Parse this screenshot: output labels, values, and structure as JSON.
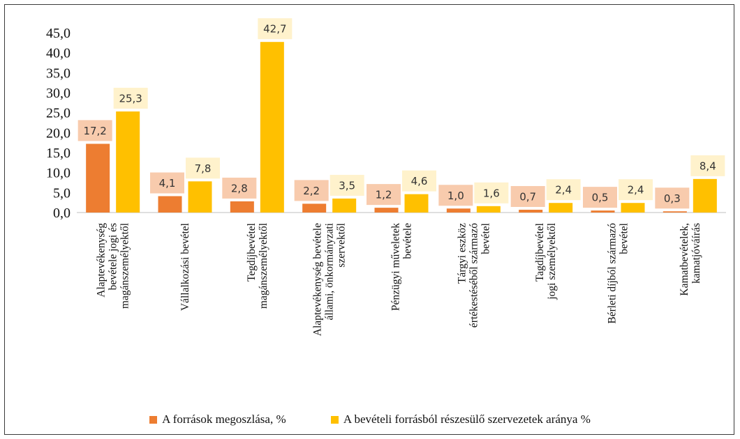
{
  "chart_data": {
    "type": "bar",
    "categories": [
      [
        "Alaptevékenység",
        "bevétele jogi és",
        "magánszemélyektől"
      ],
      [
        "Vállalkozási bevétel"
      ],
      [
        "Tegdíjbevétel",
        "magánszemélyektől"
      ],
      [
        "Alaptevékenység bevétele",
        "állami, önkormányzati",
        "szervektől"
      ],
      [
        "Pénzügyi műveletek",
        "bevétele"
      ],
      [
        "Tárgyi eszköz",
        "értékestéséből származó",
        "bevétel"
      ],
      [
        "Tagdíjbevétel",
        "jogi személyektől"
      ],
      [
        "Bérleti díjból származó",
        "bevétel"
      ],
      [
        "Kamatbevételek,",
        "kamatjóváírás"
      ]
    ],
    "series": [
      {
        "name": "A források megoszlása, %",
        "color": "#ed7d31",
        "label_bg": "#f8cbad",
        "values": [
          17.2,
          4.1,
          2.8,
          2.2,
          1.2,
          1.0,
          0.7,
          0.5,
          0.3
        ],
        "labels": [
          "17,2",
          "4,1",
          "2,8",
          "2,2",
          "1,2",
          "1,0",
          "0,7",
          "0,5",
          "0,3"
        ]
      },
      {
        "name": "A bevételi forrásból részesülő szervezetek aránya %",
        "color": "#ffc000",
        "label_bg": "#fff2cc",
        "values": [
          25.3,
          7.8,
          42.7,
          3.5,
          4.6,
          1.6,
          2.4,
          2.4,
          8.4
        ],
        "labels": [
          "25,3",
          "7,8",
          "42,7",
          "3,5",
          "4,6",
          "1,6",
          "2,4",
          "2,4",
          "8,4"
        ]
      }
    ],
    "ylim": [
      0,
      45
    ],
    "yticks": [
      "0,0",
      "5,0",
      "10,0",
      "15,0",
      "20,0",
      "25,0",
      "30,0",
      "35,0",
      "40,0",
      "45,0"
    ],
    "ytick_values": [
      0,
      5,
      10,
      15,
      20,
      25,
      30,
      35,
      40,
      45
    ],
    "legend_position": "bottom",
    "grid": false
  }
}
